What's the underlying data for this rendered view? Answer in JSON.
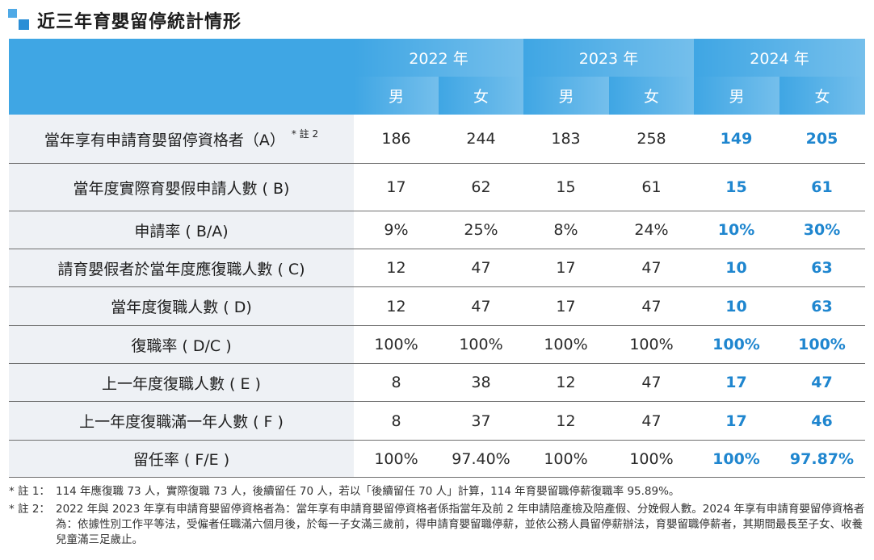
{
  "title": "近三年育嬰留停統計情形",
  "header": {
    "years": [
      "2022 年",
      "2023 年",
      "2024 年"
    ],
    "sexes": [
      "男",
      "女",
      "男",
      "女",
      "男",
      "女"
    ]
  },
  "rows": [
    {
      "label": "當年享有申請育嬰留停資格者（A）",
      "note": "* 註 2",
      "values": [
        "186",
        "244",
        "183",
        "258",
        "149",
        "205"
      ]
    },
    {
      "label": "當年度實際育嬰假申請人數 ( B)",
      "values": [
        "17",
        "62",
        "15",
        "61",
        "15",
        "61"
      ]
    },
    {
      "label": "申請率 ( B/A)",
      "values": [
        "9%",
        "25%",
        "8%",
        "24%",
        "10%",
        "30%"
      ]
    },
    {
      "label": "請育嬰假者於當年度應復職人數 ( C)",
      "values": [
        "12",
        "47",
        "17",
        "47",
        "10",
        "63"
      ]
    },
    {
      "label": "當年度復職人數 ( D)",
      "values": [
        "12",
        "47",
        "17",
        "47",
        "10",
        "63"
      ]
    },
    {
      "label": "復職率 ( D/C )",
      "values": [
        "100%",
        "100%",
        "100%",
        "100%",
        "100%",
        "100%"
      ]
    },
    {
      "label": "上一年度復職人數 ( E )",
      "values": [
        "8",
        "38",
        "12",
        "47",
        "17",
        "47"
      ]
    },
    {
      "label": "上一年度復職滿一年人數 ( F )",
      "values": [
        "8",
        "37",
        "12",
        "47",
        "17",
        "46"
      ]
    },
    {
      "label": "留任率 ( F/E )",
      "values": [
        "100%",
        "97.40%",
        "100%",
        "100%",
        "100%",
        "97.87%"
      ]
    }
  ],
  "notes": [
    {
      "mark": "* 註 1：",
      "text": "114 年應復職 73 人，實際復職 73 人，後續留任 70 人，若以「後續留任 70 人」計算，114 年育嬰留職停薪復職率 95.89%。"
    },
    {
      "mark": "* 註 2：",
      "text": "2022 年與 2023 年享有申請育嬰留停資格者為：當年享有申請育嬰留停資格者係指當年及前 2 年申請陪產檢及陪產假、分娩假人數。2024 年享有申請育嬰留停資格者為：依據性別工作平等法，受僱者任職滿六個月後，於每一子女滿三歲前，得申請育嬰留職停薪，並依公務人員留停薪辦法，育嬰留職停薪者，其期間最長至子女、收養兒童滿三足歲止。"
    }
  ],
  "colors": {
    "header_bg": "#3fa6e4",
    "highlight_text": "#1f86cf",
    "label_bg": "#eef1f5"
  }
}
